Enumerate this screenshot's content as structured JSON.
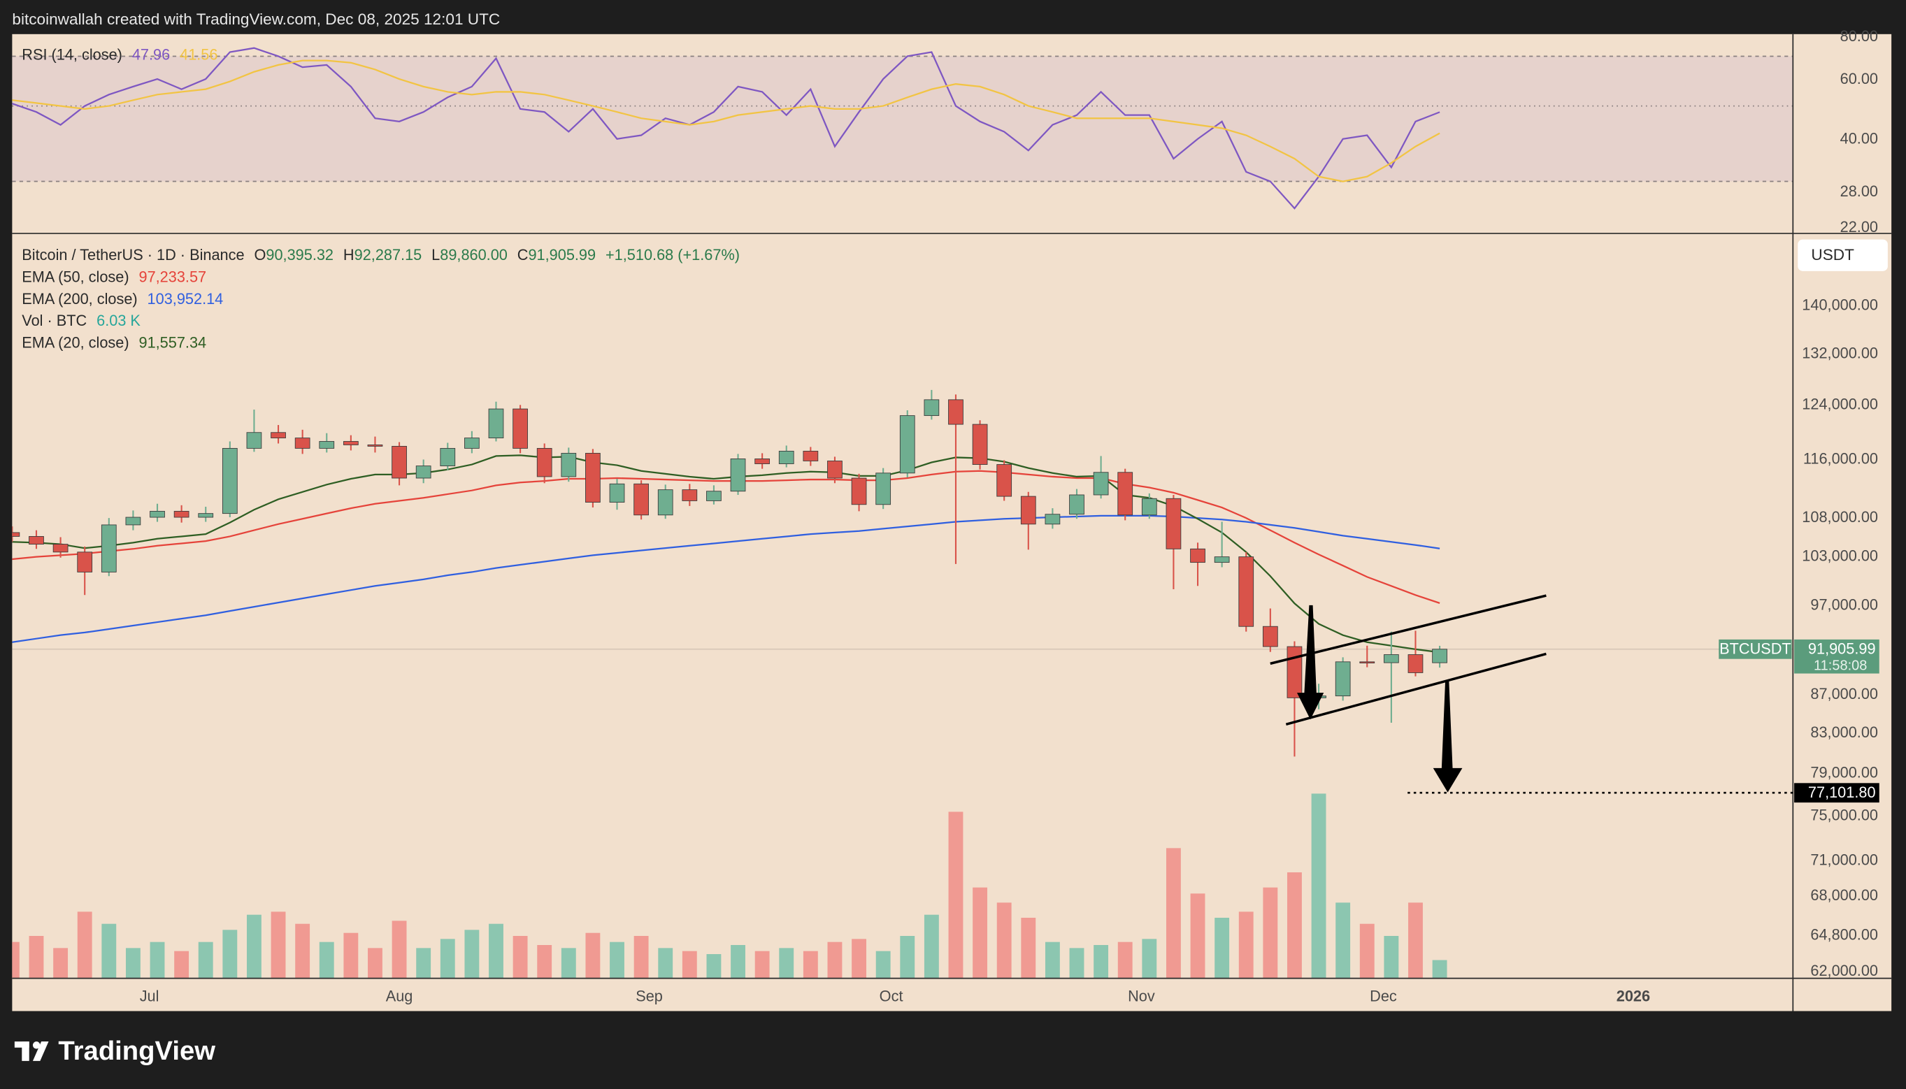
{
  "header": {
    "text": "bitcoinwallah created with TradingView.com, Dec 08, 2025 12:01 UTC"
  },
  "footer": {
    "logo": "TradingView"
  },
  "chart_data": {
    "type": "candlestick",
    "symbol_line": "Bitcoin / TetherUS · 1D · Binance",
    "ohlc_labels": [
      {
        "key": "O",
        "value": "90,395.32"
      },
      {
        "key": "H",
        "value": "92,287.15"
      },
      {
        "key": "L",
        "value": "89,860.00"
      },
      {
        "key": "C",
        "value": "91,905.99"
      }
    ],
    "change_label": "+1,510.68 (+1.67%)",
    "currency": "USDT",
    "up_color": "#6fae90",
    "down_color": "#d9534a",
    "log_scale": true,
    "ylim": [
      61450,
      152600
    ],
    "yticks": [
      {
        "value": 140000,
        "label": "140,000.00"
      },
      {
        "value": 132000,
        "label": "132,000.00"
      },
      {
        "value": 124000,
        "label": "124,000.00"
      },
      {
        "value": 116000,
        "label": "116,000.00"
      },
      {
        "value": 108000,
        "label": "108,000.00"
      },
      {
        "value": 103000,
        "label": "103,000.00"
      },
      {
        "value": 97000,
        "label": "97,000.00"
      },
      {
        "value": 87000,
        "label": "87,000.00"
      },
      {
        "value": 83000,
        "label": "83,000.00"
      },
      {
        "value": 79000,
        "label": "79,000.00"
      },
      {
        "value": 75000,
        "label": "75,000.00"
      },
      {
        "value": 71000,
        "label": "71,000.00"
      },
      {
        "value": 68000,
        "label": "68,000.00"
      },
      {
        "value": 64800,
        "label": "64,800.00"
      },
      {
        "value": 62000,
        "label": "62,000.00"
      }
    ],
    "xlim": [
      0,
      73.6
    ],
    "xticks": [
      {
        "value": 5.67,
        "label": "Jul"
      },
      {
        "value": 16,
        "label": "Aug"
      },
      {
        "value": 26.33,
        "label": "Sep"
      },
      {
        "value": 36.33,
        "label": "Oct"
      },
      {
        "value": 46.67,
        "label": "Nov"
      },
      {
        "value": 56.67,
        "label": "Dec"
      },
      {
        "value": 67,
        "label": "2026"
      }
    ],
    "ohlc": [
      [
        106000,
        106800,
        104800,
        105500
      ],
      [
        105500,
        106300,
        103900,
        104500
      ],
      [
        104500,
        105400,
        102800,
        103500
      ],
      [
        103500,
        104200,
        98200,
        101000
      ],
      [
        101000,
        107900,
        100500,
        107000
      ],
      [
        107000,
        108900,
        106300,
        108000
      ],
      [
        108000,
        109800,
        107400,
        108800
      ],
      [
        108800,
        109600,
        107300,
        108000
      ],
      [
        108000,
        109400,
        107400,
        108500
      ],
      [
        108500,
        118500,
        108000,
        117500
      ],
      [
        117500,
        123200,
        117000,
        119800
      ],
      [
        119800,
        120900,
        118200,
        119000
      ],
      [
        119000,
        120200,
        116700,
        117500
      ],
      [
        117500,
        119700,
        116900,
        118500
      ],
      [
        118500,
        119400,
        117200,
        118000
      ],
      [
        118000,
        119200,
        116900,
        117800
      ],
      [
        117800,
        118400,
        112300,
        113300
      ],
      [
        113300,
        115900,
        112600,
        115000
      ],
      [
        115000,
        118300,
        114400,
        117500
      ],
      [
        117500,
        120000,
        116800,
        119000
      ],
      [
        119000,
        124400,
        118500,
        123300
      ],
      [
        123300,
        123900,
        116800,
        117500
      ],
      [
        117500,
        118200,
        112600,
        113500
      ],
      [
        113500,
        117600,
        112800,
        116800
      ],
      [
        116800,
        117400,
        109300,
        110000
      ],
      [
        110000,
        113200,
        109000,
        112500
      ],
      [
        112500,
        113000,
        107700,
        108300
      ],
      [
        108300,
        112400,
        107800,
        111700
      ],
      [
        111700,
        112500,
        109500,
        110200
      ],
      [
        110200,
        112300,
        109700,
        111500
      ],
      [
        111500,
        116700,
        111000,
        116000
      ],
      [
        116000,
        116800,
        114600,
        115300
      ],
      [
        115300,
        117900,
        114800,
        117100
      ],
      [
        117100,
        117700,
        115000,
        115700
      ],
      [
        115700,
        116300,
        112600,
        113300
      ],
      [
        113300,
        113900,
        108800,
        109700
      ],
      [
        109700,
        114700,
        109100,
        114000
      ],
      [
        114000,
        123100,
        113400,
        122300
      ],
      [
        122300,
        126200,
        121700,
        124700
      ],
      [
        124700,
        125500,
        102000,
        121000
      ],
      [
        121000,
        121600,
        114500,
        115200
      ],
      [
        115200,
        115800,
        110200,
        110800
      ],
      [
        110800,
        111400,
        103800,
        107100
      ],
      [
        107100,
        109200,
        106500,
        108400
      ],
      [
        108400,
        111800,
        107800,
        111000
      ],
      [
        111000,
        116400,
        110500,
        114100
      ],
      [
        114100,
        114600,
        107600,
        108300
      ],
      [
        108300,
        111200,
        107800,
        110500
      ],
      [
        110500,
        111000,
        98900,
        103900
      ],
      [
        103900,
        104700,
        99300,
        102200
      ],
      [
        102200,
        107400,
        101600,
        102900
      ],
      [
        102900,
        103500,
        93900,
        94500
      ],
      [
        94500,
        96600,
        91600,
        92200
      ],
      [
        92200,
        92800,
        80600,
        86600
      ],
      [
        86600,
        88100,
        85400,
        86800
      ],
      [
        86800,
        91000,
        86300,
        90500
      ],
      [
        90500,
        92300,
        89900,
        90400
      ],
      [
        90400,
        93900,
        84000,
        91300
      ],
      [
        91300,
        94000,
        88900,
        89300
      ],
      [
        90395.32,
        92287.15,
        89860,
        91905.99
      ]
    ],
    "indicators": [
      {
        "name": "EMA (50, close)",
        "value_label": "97,233.57",
        "color": "#e5433a",
        "values": [
          102600,
          102900,
          103100,
          103300,
          103600,
          103900,
          104300,
          104600,
          104900,
          105500,
          106300,
          107100,
          107800,
          108500,
          109200,
          109800,
          110200,
          110600,
          111100,
          111600,
          112300,
          112700,
          112900,
          113200,
          113200,
          113300,
          113200,
          113100,
          113000,
          112900,
          112900,
          112900,
          113000,
          113100,
          113100,
          113000,
          113000,
          113300,
          113800,
          114200,
          114300,
          114100,
          113800,
          113500,
          113300,
          113300,
          112500,
          112000,
          111300,
          110300,
          109300,
          107900,
          106300,
          104700,
          103200,
          101800,
          100400,
          99300,
          98200,
          97233.57
        ]
      },
      {
        "name": "EMA (200, close)",
        "value_label": "103,952.14",
        "color": "#2f5fe0",
        "values": [
          92700,
          93100,
          93500,
          93800,
          94200,
          94600,
          95000,
          95400,
          95800,
          96300,
          96800,
          97300,
          97800,
          98300,
          98800,
          99300,
          99700,
          100100,
          100600,
          101000,
          101500,
          101900,
          102300,
          102700,
          103100,
          103400,
          103700,
          104000,
          104300,
          104600,
          104900,
          105200,
          105500,
          105800,
          106000,
          106200,
          106500,
          106800,
          107100,
          107400,
          107600,
          107800,
          107900,
          108000,
          108100,
          108200,
          108200,
          108200,
          108100,
          107900,
          107700,
          107400,
          107000,
          106600,
          106100,
          105600,
          105200,
          104800,
          104400,
          103952.14
        ]
      },
      {
        "name": "EMA (20, close)",
        "value_label": "91,557.34",
        "color": "#2e5e23",
        "values": [
          104800,
          104700,
          104500,
          104000,
          104300,
          104700,
          105200,
          105500,
          105800,
          107300,
          109000,
          110400,
          111400,
          112400,
          113200,
          113800,
          113800,
          114000,
          114500,
          115200,
          116400,
          116500,
          116200,
          116300,
          115500,
          115100,
          114300,
          113900,
          113500,
          113200,
          113500,
          113700,
          114000,
          114200,
          114100,
          113600,
          113600,
          114400,
          115500,
          116200,
          116100,
          115600,
          114700,
          114000,
          113500,
          113600,
          111000,
          110600,
          109500,
          107800,
          106000,
          103500,
          100500,
          97200,
          94800,
          93500,
          92700,
          92300,
          91900,
          91557.34
        ]
      }
    ],
    "volume": {
      "name": "Vol · BTC",
      "value_label": "6.03 K",
      "color": "#26a69a",
      "up_color": "#8cc6b0",
      "down_color": "#f09a92",
      "values": [
        12,
        14,
        10,
        22,
        18,
        10,
        12,
        9,
        12,
        16,
        21,
        22,
        18,
        12,
        15,
        10,
        19,
        10,
        13,
        16,
        18,
        14,
        11,
        10,
        15,
        12,
        14,
        10,
        9,
        8,
        11,
        9,
        10,
        9,
        12,
        13,
        9,
        14,
        21,
        55,
        30,
        25,
        20,
        12,
        10,
        11,
        12,
        13,
        43,
        28,
        20,
        22,
        30,
        35,
        61,
        25,
        18,
        14,
        25,
        6.03
      ]
    },
    "last_price": {
      "symbol": "BTCUSDT",
      "value": 91905.99,
      "label": "91,905.99",
      "countdown": "11:58:08",
      "color": "#5b9c7c"
    },
    "target": {
      "value": 77101.8,
      "label": "77,101.80"
    },
    "rsi": {
      "type": "line",
      "name": "RSI (14, close)",
      "value_label": "47.96",
      "ma_label": "41.56",
      "log_scale": true,
      "ylim": [
        21.1,
        81.3
      ],
      "yticks": [
        {
          "value": 80,
          "label": "80.00"
        },
        {
          "value": 60,
          "label": "60.00"
        },
        {
          "value": 40,
          "label": "40.00"
        },
        {
          "value": 28,
          "label": "28.00"
        },
        {
          "value": 22,
          "label": "22.00"
        }
      ],
      "bands": [
        70,
        50,
        30
      ],
      "series": [
        {
          "color": "#7e57c2",
          "values": [
            50.8,
            48,
            44,
            50,
            54,
            57,
            60,
            56,
            60,
            72,
            74,
            70,
            65,
            66,
            57,
            46,
            45,
            48,
            53,
            57,
            69,
            49,
            48,
            42,
            49,
            40,
            41,
            46,
            44,
            48,
            57,
            55,
            47,
            56,
            38,
            48,
            60,
            70,
            72,
            50,
            45,
            42,
            37,
            44,
            47,
            55,
            47,
            47,
            35,
            40,
            45,
            32,
            30,
            25,
            31,
            40,
            41,
            33,
            45,
            47.96
          ]
        },
        {
          "color": "#f2c443",
          "values": [
            52,
            51,
            50,
            49,
            50,
            52,
            54,
            55,
            56,
            59,
            63,
            66,
            68,
            68,
            67,
            64,
            60,
            57,
            55,
            54,
            55,
            55,
            54,
            52,
            50,
            48,
            46,
            45,
            44,
            45,
            47,
            48,
            49,
            50,
            49,
            49,
            50,
            53,
            56,
            58,
            57,
            54,
            50,
            48,
            46,
            46,
            46,
            46,
            45,
            44,
            43,
            41,
            38,
            35,
            31,
            30,
            31,
            34,
            38,
            41.56
          ]
        }
      ]
    }
  }
}
